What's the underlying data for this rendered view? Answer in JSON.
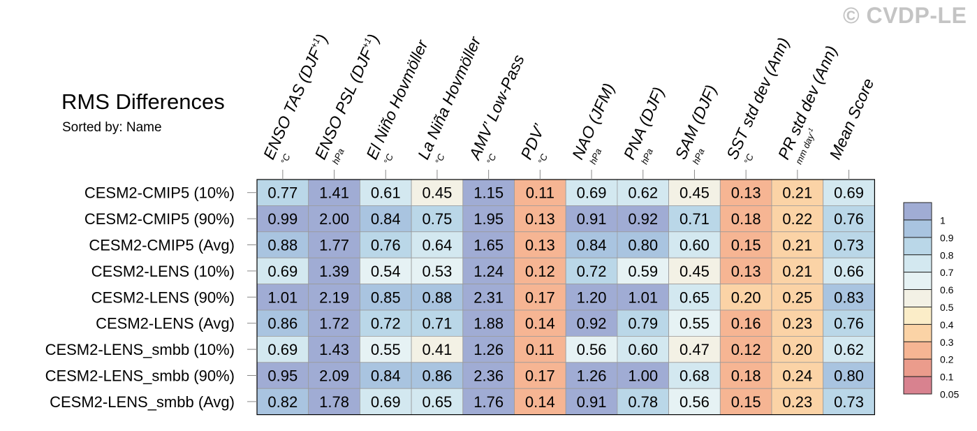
{
  "watermark": "© CVDP-LE",
  "chart_data": {
    "type": "heatmap",
    "title": "RMS Differences",
    "subtitle": "Sorted by: Name",
    "columns": [
      {
        "name": "ENSO TAS (DJF+1)",
        "unit": "°C"
      },
      {
        "name": "ENSO PSL (DJF+1)",
        "unit": "hPa"
      },
      {
        "name": "El Niño Hovmöller",
        "unit": "°C"
      },
      {
        "name": "La Niña Hovmöller",
        "unit": "°C"
      },
      {
        "name": "AMV’ Low-Pass",
        "unit": "°C"
      },
      {
        "name": "PDV’",
        "unit": "°C"
      },
      {
        "name": "NAO (JFM)",
        "unit": "hPa"
      },
      {
        "name": "PNA (DJF)",
        "unit": "hPa"
      },
      {
        "name": "SAM (DJF)",
        "unit": "hPa"
      },
      {
        "name": "SST std dev (Ann)",
        "unit": "°C"
      },
      {
        "name": "PR std dev (Ann)",
        "unit": "mm day-1"
      },
      {
        "name": "Mean Score",
        "unit": ""
      }
    ],
    "rows": [
      "CESM2-CMIP5 (10%)",
      "CESM2-CMIP5 (90%)",
      "CESM2-CMIP5 (Avg)",
      "CESM2-LENS (10%)",
      "CESM2-LENS (90%)",
      "CESM2-LENS (Avg)",
      "CESM2-LENS_smbb (10%)",
      "CESM2-LENS_smbb (90%)",
      "CESM2-LENS_smbb (Avg)"
    ],
    "values": [
      [
        "0.77",
        "1.41",
        "0.61",
        "0.45",
        "1.15",
        "0.11",
        "0.69",
        "0.62",
        "0.45",
        "0.13",
        "0.21",
        "0.69"
      ],
      [
        "0.99",
        "2.00",
        "0.84",
        "0.75",
        "1.95",
        "0.13",
        "0.91",
        "0.92",
        "0.71",
        "0.18",
        "0.22",
        "0.76"
      ],
      [
        "0.88",
        "1.77",
        "0.76",
        "0.64",
        "1.65",
        "0.13",
        "0.84",
        "0.80",
        "0.60",
        "0.15",
        "0.21",
        "0.73"
      ],
      [
        "0.69",
        "1.39",
        "0.54",
        "0.53",
        "1.24",
        "0.12",
        "0.72",
        "0.59",
        "0.45",
        "0.13",
        "0.21",
        "0.66"
      ],
      [
        "1.01",
        "2.19",
        "0.85",
        "0.88",
        "2.31",
        "0.17",
        "1.20",
        "1.01",
        "0.65",
        "0.20",
        "0.25",
        "0.83"
      ],
      [
        "0.86",
        "1.72",
        "0.72",
        "0.71",
        "1.88",
        "0.14",
        "0.92",
        "0.79",
        "0.55",
        "0.16",
        "0.23",
        "0.76"
      ],
      [
        "0.69",
        "1.43",
        "0.55",
        "0.41",
        "1.26",
        "0.11",
        "0.56",
        "0.60",
        "0.47",
        "0.12",
        "0.20",
        "0.62"
      ],
      [
        "0.95",
        "2.09",
        "0.84",
        "0.86",
        "2.36",
        "0.17",
        "1.26",
        "1.00",
        "0.68",
        "0.18",
        "0.24",
        "0.80"
      ],
      [
        "0.82",
        "1.78",
        "0.69",
        "0.65",
        "1.76",
        "0.14",
        "0.91",
        "0.78",
        "0.56",
        "0.15",
        "0.23",
        "0.73"
      ]
    ],
    "colorbar": {
      "labels": [
        "1",
        "0.9",
        "0.8",
        "0.7",
        "0.6",
        "0.5",
        "0.4",
        "0.3",
        "0.2",
        "0.1",
        "0.05"
      ],
      "colors": [
        "#a0acd4",
        "#a9c4e0",
        "#bad7e8",
        "#d3e8f0",
        "#e6f2f4",
        "#f3f1e5",
        "#fbedc8",
        "#fbd3a6",
        "#f6b593",
        "#eb9c8c",
        "#d8828f"
      ]
    }
  }
}
